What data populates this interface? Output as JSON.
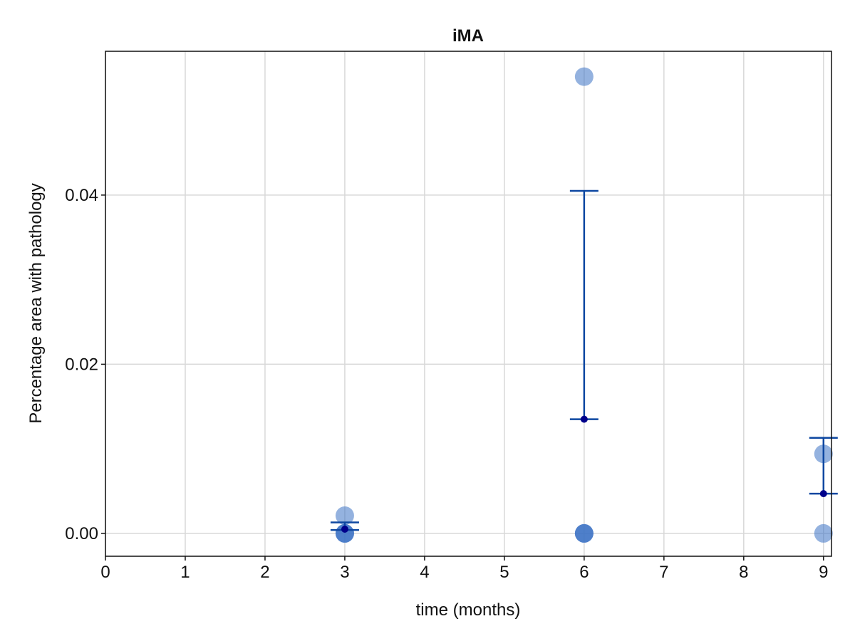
{
  "chart_data": {
    "type": "scatter",
    "title": "iMA",
    "xlabel": "time (months)",
    "ylabel": "Percentage area with pathology",
    "xlim": [
      0,
      9.1
    ],
    "ylim": [
      -0.0027,
      0.057
    ],
    "x_ticks": [
      0,
      1,
      2,
      3,
      4,
      5,
      6,
      7,
      8,
      9
    ],
    "x_tick_labels": [
      "0",
      "1",
      "2",
      "3",
      "4",
      "5",
      "6",
      "7",
      "8",
      "9"
    ],
    "y_ticks": [
      0.0,
      0.02,
      0.04
    ],
    "y_tick_labels": [
      "0.00",
      "0.02",
      "0.04"
    ],
    "grid": true,
    "legend": "none",
    "colors": {
      "points": "#3d72c4",
      "points_opacity": 0.55,
      "error_bar": "#0d47a1",
      "mean": "#00008b"
    },
    "series": [
      {
        "kind": "individual_points",
        "points": [
          {
            "x": 3,
            "y": 0.0021
          },
          {
            "x": 3,
            "y": 0.0
          },
          {
            "x": 3,
            "y": 0.0
          },
          {
            "x": 3,
            "y": 0.0
          },
          {
            "x": 6,
            "y": 0.054
          },
          {
            "x": 6,
            "y": 0.0
          },
          {
            "x": 6,
            "y": 0.0
          },
          {
            "x": 6,
            "y": 0.0
          },
          {
            "x": 9,
            "y": 0.0094
          },
          {
            "x": 9,
            "y": 0.0
          }
        ]
      },
      {
        "kind": "mean_with_error",
        "points": [
          {
            "x": 3,
            "mean": 0.0005,
            "lower": 0.0004,
            "upper": 0.0013
          },
          {
            "x": 6,
            "mean": 0.0135,
            "lower": 0.0135,
            "upper": 0.0405
          },
          {
            "x": 9,
            "mean": 0.0047,
            "lower": 0.0047,
            "upper": 0.0113
          }
        ]
      }
    ]
  }
}
